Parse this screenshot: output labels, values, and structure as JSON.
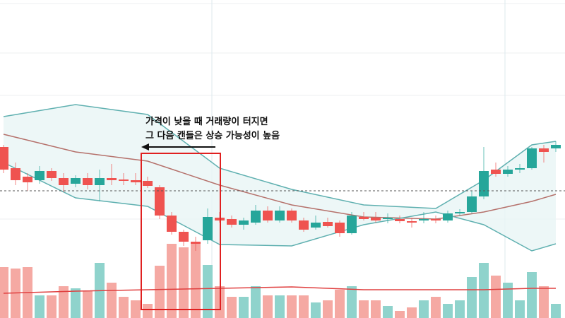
{
  "chart_data": {
    "type": "candlestick",
    "annotation": [
      "가격이 낮을 때 거래량이 터지면",
      "그 다음 캔들은 상승 가능성이 높음"
    ],
    "open": [
      242,
      212,
      200,
      195,
      208,
      198,
      190,
      198,
      188,
      198,
      196,
      195,
      194,
      185,
      145,
      122,
      108,
      110,
      142,
      140,
      132,
      135,
      152,
      138,
      152,
      138,
      128,
      136,
      135,
      120,
      143,
      142,
      140,
      140,
      137,
      138,
      140,
      138,
      148,
      150,
      172,
      210,
      204,
      210,
      212,
      240,
      240
    ],
    "high": [
      245,
      220,
      205,
      215,
      212,
      205,
      202,
      205,
      210,
      218,
      205,
      205,
      200,
      188,
      150,
      125,
      115,
      155,
      150,
      145,
      142,
      160,
      158,
      158,
      155,
      142,
      145,
      142,
      138,
      150,
      150,
      150,
      148,
      145,
      142,
      150,
      145,
      152,
      154,
      180,
      242,
      220,
      215,
      218,
      242,
      245,
      250
    ],
    "low": [
      205,
      188,
      180,
      190,
      194,
      178,
      185,
      182,
      165,
      188,
      188,
      188,
      184,
      140,
      118,
      102,
      95,
      105,
      135,
      128,
      125,
      132,
      135,
      135,
      135,
      122,
      125,
      128,
      115,
      118,
      138,
      135,
      134,
      134,
      128,
      134,
      134,
      135,
      145,
      148,
      168,
      200,
      200,
      205,
      210,
      220,
      235
    ],
    "close": [
      210,
      195,
      192,
      208,
      198,
      188,
      198,
      188,
      198,
      195,
      194,
      192,
      187,
      145,
      122,
      108,
      105,
      143,
      138,
      132,
      138,
      152,
      138,
      152,
      138,
      125,
      135,
      130,
      120,
      145,
      140,
      138,
      142,
      137,
      135,
      140,
      138,
      148,
      150,
      172,
      208,
      204,
      210,
      212,
      240,
      235,
      245
    ],
    "volume": [
      72,
      70,
      72,
      32,
      32,
      45,
      42,
      38,
      78,
      50,
      30,
      25,
      20,
      74,
      105,
      100,
      105,
      75,
      45,
      30,
      30,
      45,
      32,
      32,
      32,
      32,
      22,
      25,
      40,
      45,
      25,
      25,
      17,
      10,
      15,
      25,
      30,
      20,
      25,
      58,
      78,
      60,
      50,
      25,
      65,
      45,
      20
    ],
    "up_color": "#26a69a",
    "down_color": "#ef5350",
    "up_volume_color": "#8fd3cc",
    "down_volume_color": "#f5a9a3",
    "lines": [
      {
        "color": "#5fb0b0",
        "x": [
          0,
          6,
          12,
          18,
          24,
          30,
          36,
          40,
          44,
          46
        ],
        "values": [
          285,
          302,
          288,
          212,
          182,
          160,
          155,
          195,
          245,
          250
        ]
      },
      {
        "color": "#b5716b",
        "x": [
          0,
          6,
          12,
          18,
          24,
          30,
          36,
          40,
          44,
          46
        ],
        "values": [
          260,
          235,
          222,
          188,
          160,
          143,
          140,
          150,
          165,
          175
        ]
      },
      {
        "color": "#5fb0b0",
        "x": [
          0,
          6,
          12,
          18,
          24,
          30,
          36,
          40,
          44,
          46
        ],
        "values": [
          220,
          170,
          158,
          104,
          102,
          132,
          150,
          132,
          95,
          105
        ]
      },
      {
        "color": "#e04040",
        "x": [
          0,
          6,
          12,
          18,
          24,
          30,
          36,
          40,
          44,
          46
        ],
        "values": [
          35,
          38,
          40,
          42,
          44,
          40,
          40,
          40,
          42,
          42
        ]
      }
    ],
    "ylim": [
      0,
      450
    ]
  }
}
